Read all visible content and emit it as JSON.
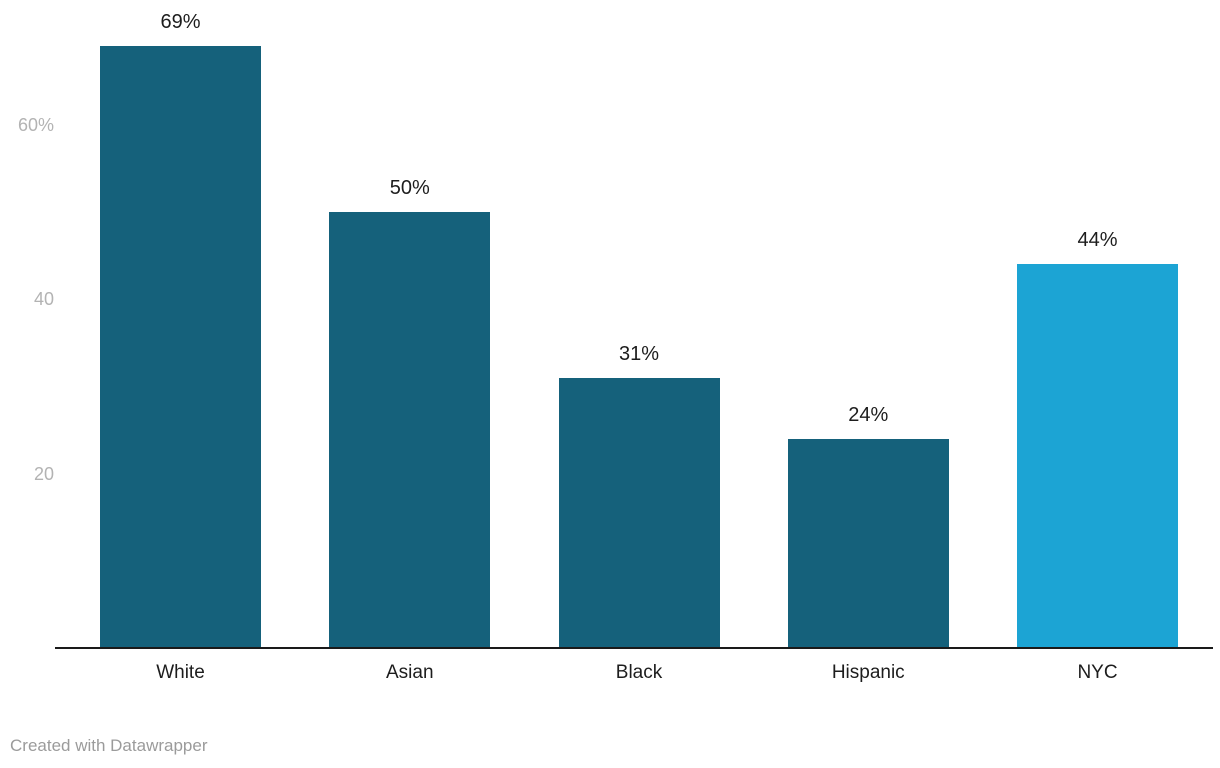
{
  "chart_data": {
    "type": "bar",
    "categories": [
      "White",
      "Asian",
      "Black",
      "Hispanic",
      "NYC"
    ],
    "values": [
      69,
      50,
      31,
      24,
      44
    ],
    "value_labels": [
      "69%",
      "50%",
      "31%",
      "24%",
      "44%"
    ],
    "title": "",
    "xlabel": "",
    "ylabel": "",
    "ylim": [
      0,
      74
    ],
    "yticks": [
      {
        "value": 20,
        "label": "20"
      },
      {
        "value": 40,
        "label": "40"
      },
      {
        "value": 60,
        "label": "60%"
      }
    ],
    "grid": false,
    "legend": false,
    "bar_colors": [
      "#15617b",
      "#15617b",
      "#15617b",
      "#15617b",
      "#1ca4d4"
    ]
  },
  "colors": {
    "bar_default": "#15617b",
    "bar_highlight": "#1ca4d4",
    "axis_line": "#1a1a1a",
    "tick_label": "#b3b3b3",
    "value_label": "#1d1d1d",
    "category_label": "#1d1d1d",
    "footer_text": "#9b9b9b",
    "background": "#ffffff"
  },
  "footer": {
    "attribution": "Created with Datawrapper"
  }
}
